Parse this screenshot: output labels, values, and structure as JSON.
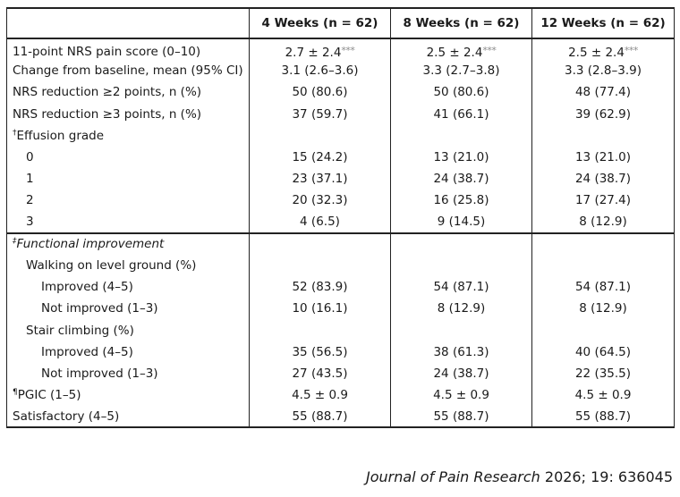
{
  "headers": [
    "",
    "4 Weeks (n = 62)",
    "8 Weeks (n = 62)",
    "12 Weeks (n = 62)"
  ],
  "rows": [
    {
      "label": "11-point NRS pain score (0–10)",
      "mark": "",
      "values": [
        "2.7 ± 2.4",
        "2.5 ± 2.4",
        "2.5 ± 2.4"
      ],
      "sig": "***"
    },
    {
      "label": "Change from baseline, mean (95% CI)",
      "mark": "",
      "values": [
        "3.1 (2.6–3.6)",
        "3.3 (2.7–3.8)",
        "3.3 (2.8–3.9)"
      ]
    },
    {
      "label": "NRS reduction ≥2 points, n (%)",
      "mark": "",
      "values": [
        "50 (80.6)",
        "50 (80.6)",
        "48 (77.4)"
      ]
    },
    {
      "label": "NRS reduction ≥3 points, n (%)",
      "mark": "",
      "values": [
        "37 (59.7)",
        "41 (66.1)",
        "39 (62.9)"
      ]
    },
    {
      "label": "Effusion grade",
      "mark": "†",
      "values": [
        "",
        "",
        ""
      ]
    },
    {
      "label": "0",
      "mark": "",
      "values": [
        "15 (24.2)",
        "13 (21.0)",
        "13 (21.0)"
      ]
    },
    {
      "label": "1",
      "mark": "",
      "values": [
        "23 (37.1)",
        "24 (38.7)",
        "24 (38.7)"
      ]
    },
    {
      "label": "2",
      "mark": "",
      "values": [
        "20 (32.3)",
        "16 (25.8)",
        "17 (27.4)"
      ]
    },
    {
      "label": "3",
      "mark": "",
      "values": [
        "4 (6.5)",
        "9 (14.5)",
        "8 (12.9)"
      ]
    },
    {
      "label": "Functional improvement",
      "mark": "‡",
      "values": [
        "",
        "",
        ""
      ]
    },
    {
      "label": "Walking on level ground (%)",
      "mark": "",
      "values": [
        "",
        "",
        ""
      ]
    },
    {
      "label": "Improved (4–5)",
      "mark": "",
      "values": [
        "52 (83.9)",
        "54 (87.1)",
        "54 (87.1)"
      ]
    },
    {
      "label": "Not improved (1–3)",
      "mark": "",
      "values": [
        "10 (16.1)",
        "8 (12.9)",
        "8 (12.9)"
      ]
    },
    {
      "label": "Stair climbing (%)",
      "mark": "",
      "values": [
        "",
        "",
        ""
      ]
    },
    {
      "label": "Improved (4–5)",
      "mark": "",
      "values": [
        "35 (56.5)",
        "38 (61.3)",
        "40 (64.5)"
      ]
    },
    {
      "label": "Not improved (1–3)",
      "mark": "",
      "values": [
        "27 (43.5)",
        "24 (38.7)",
        "22 (35.5)"
      ]
    },
    {
      "label": "PGIC (1–5)",
      "mark": "¶",
      "values": [
        "4.5 ± 0.9",
        "4.5 ± 0.9",
        "4.5 ± 0.9"
      ]
    },
    {
      "label": "Satisfactory (4–5)",
      "mark": "",
      "values": [
        "55 (88.7)",
        "55 (88.7)",
        "55 (88.7)"
      ]
    }
  ],
  "footer": {
    "journal": "Journal of Pain Research",
    "citation": "2026; 19: 636045"
  }
}
